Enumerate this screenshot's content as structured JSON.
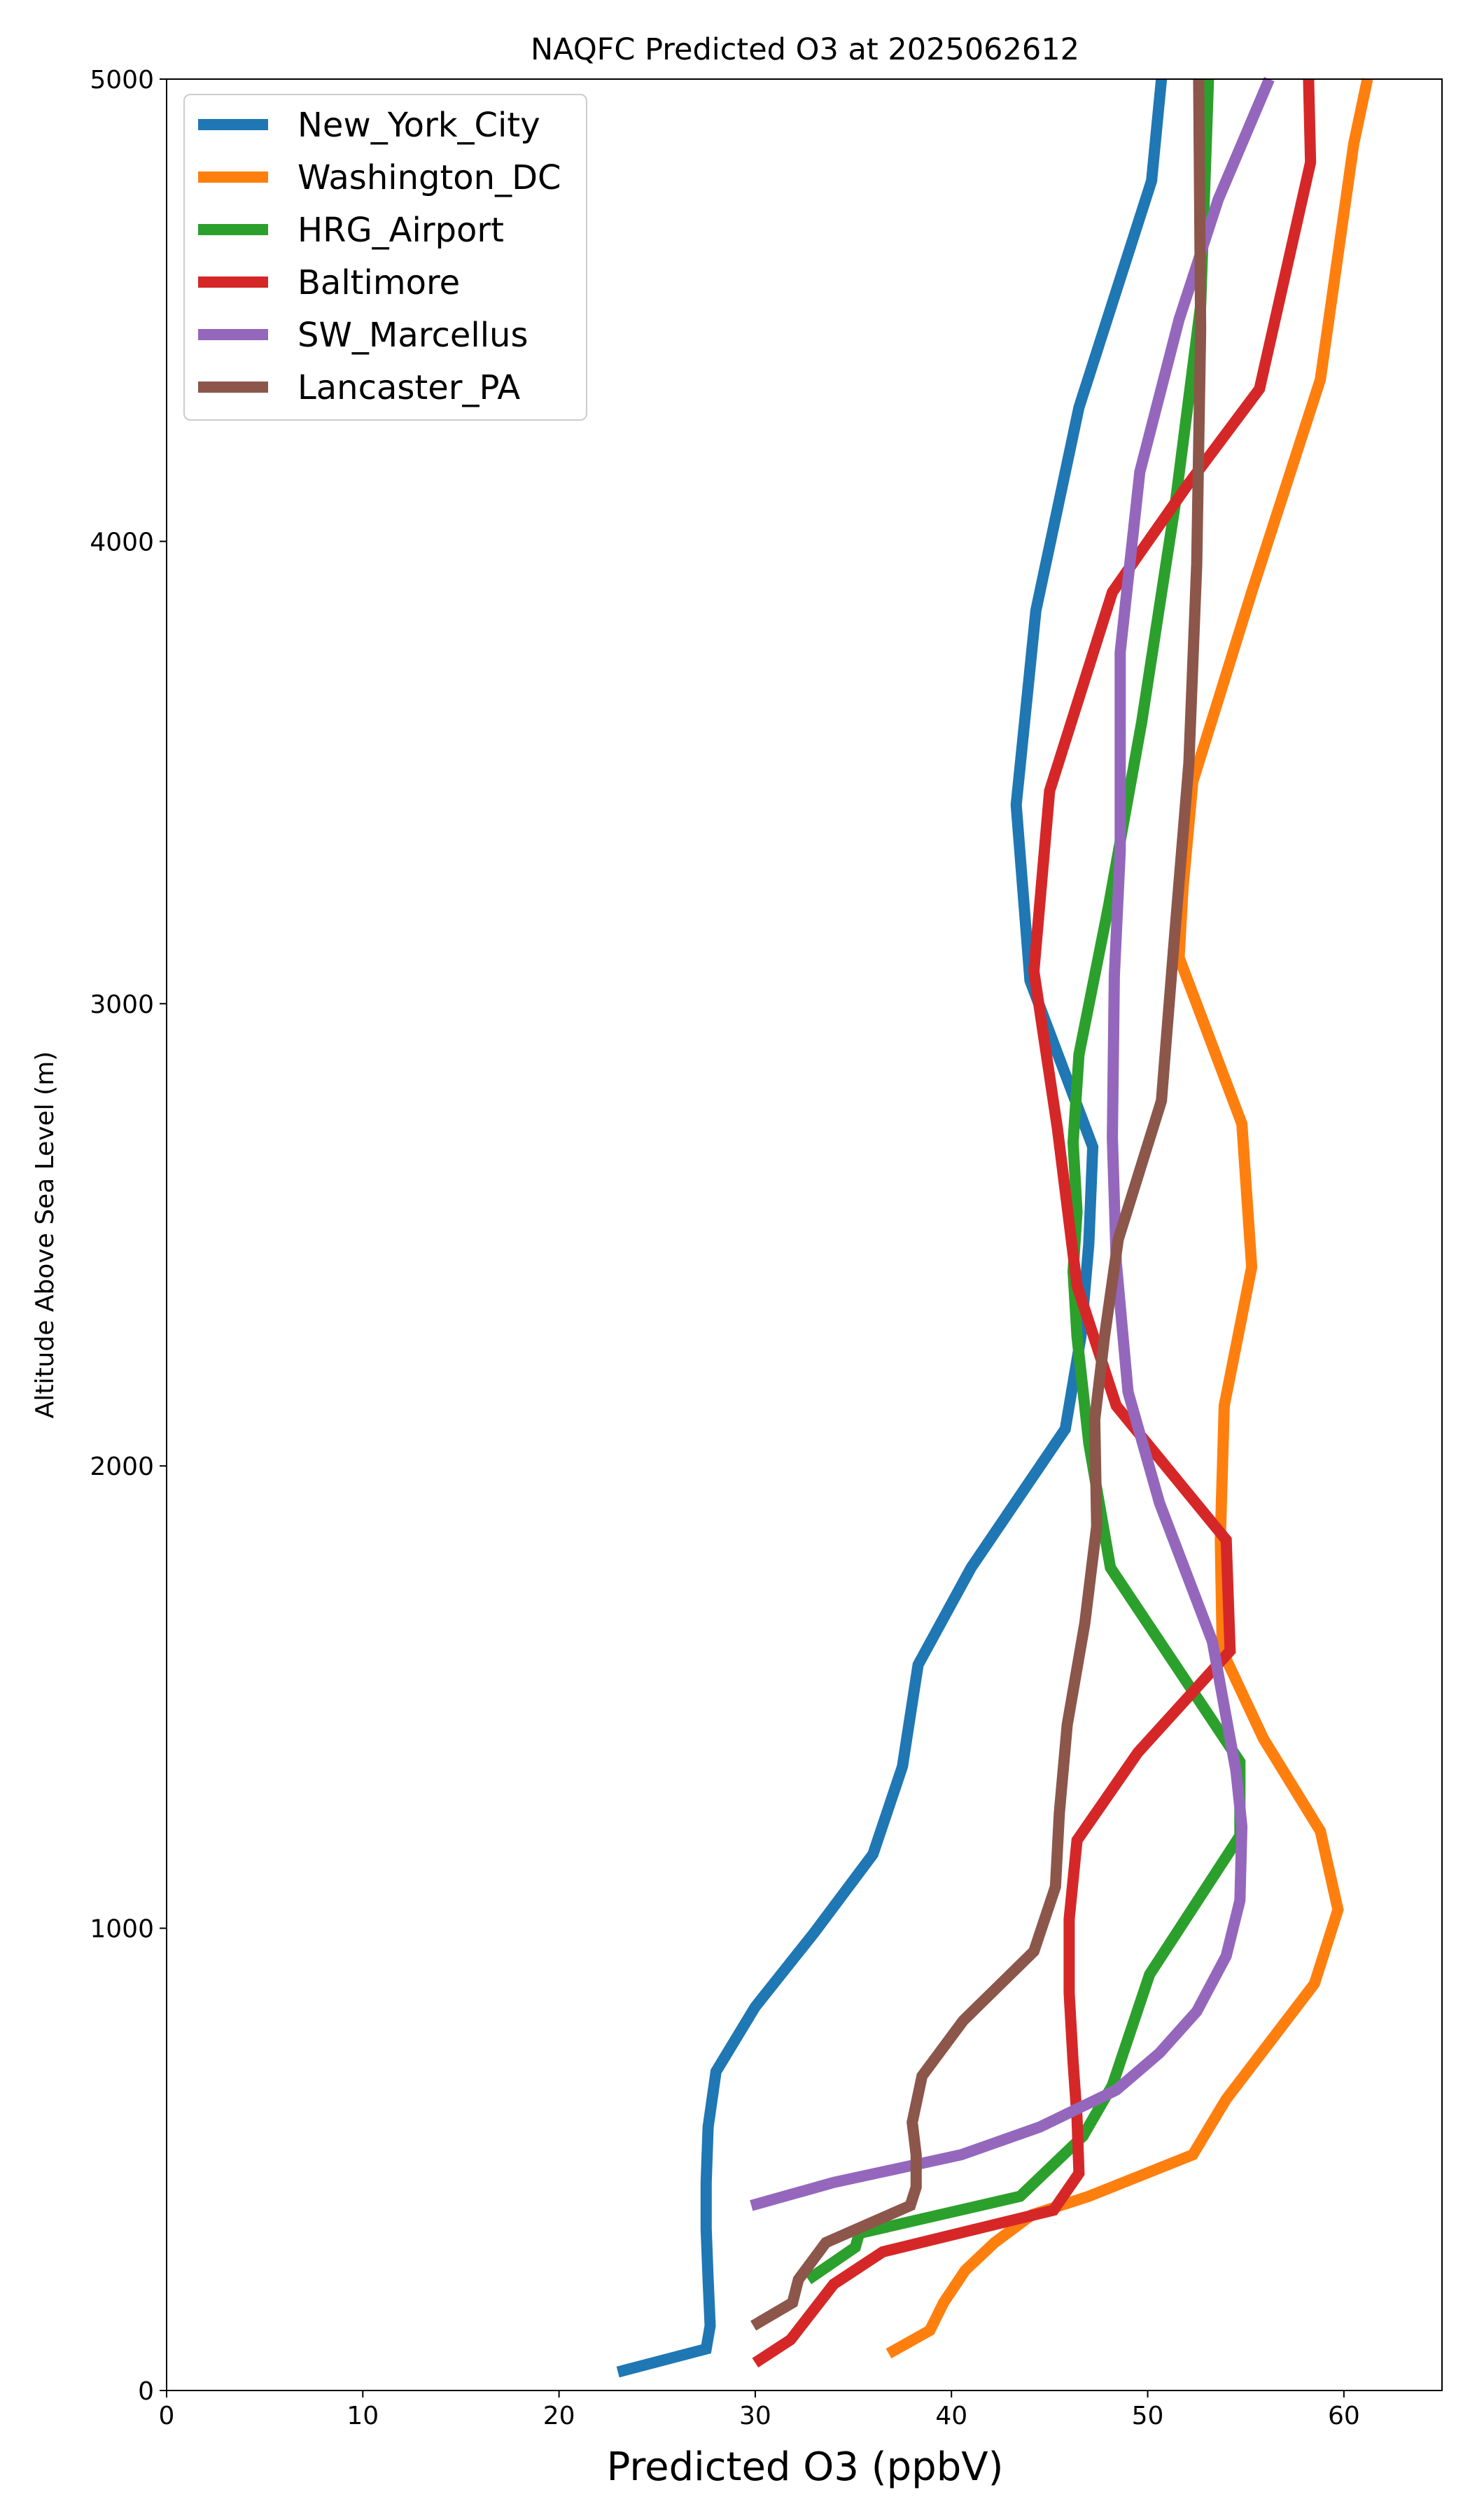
{
  "chart_data": {
    "type": "line",
    "title": "NAQFC Predicted O3 at 2025062612",
    "xlabel": "Predicted O3 (ppbV)",
    "ylabel": "Altitude Above Sea Level (m)",
    "xlim": [
      0,
      65
    ],
    "ylim": [
      0,
      5000
    ],
    "xticks": [
      "0",
      "10",
      "20",
      "30",
      "40",
      "50",
      "60"
    ],
    "yticks": [
      "0",
      "1000",
      "2000",
      "3000",
      "4000",
      "5000"
    ],
    "grid": false,
    "legend_position": "upper-left",
    "series": [
      {
        "name": "New_York_City",
        "color": "#1f77b4",
        "points": [
          [
            23.0,
            40
          ],
          [
            27.5,
            90
          ],
          [
            27.7,
            140
          ],
          [
            27.6,
            240
          ],
          [
            27.5,
            350
          ],
          [
            27.5,
            450
          ],
          [
            27.6,
            570
          ],
          [
            28.0,
            690
          ],
          [
            30.0,
            830
          ],
          [
            33.0,
            990
          ],
          [
            36.0,
            1160
          ],
          [
            37.5,
            1350
          ],
          [
            38.3,
            1570
          ],
          [
            41.0,
            1780
          ],
          [
            45.8,
            2080
          ],
          [
            46.6,
            2280
          ],
          [
            47.0,
            2480
          ],
          [
            47.2,
            2690
          ],
          [
            44.0,
            3050
          ],
          [
            43.3,
            3430
          ],
          [
            44.3,
            3850
          ],
          [
            46.5,
            4290
          ],
          [
            50.2,
            4780
          ],
          [
            50.7,
            5000
          ]
        ]
      },
      {
        "name": "Washington_DC",
        "color": "#ff7f0e",
        "points": [
          [
            36.8,
            80
          ],
          [
            38.9,
            130
          ],
          [
            39.6,
            190
          ],
          [
            40.7,
            260
          ],
          [
            42.2,
            320
          ],
          [
            44.1,
            380
          ],
          [
            47.0,
            420
          ],
          [
            52.3,
            510
          ],
          [
            54.0,
            630
          ],
          [
            58.5,
            880
          ],
          [
            59.7,
            1040
          ],
          [
            58.8,
            1210
          ],
          [
            55.9,
            1410
          ],
          [
            53.8,
            1600
          ],
          [
            53.7,
            1840
          ],
          [
            53.9,
            2130
          ],
          [
            55.3,
            2430
          ],
          [
            54.8,
            2740
          ],
          [
            51.6,
            3100
          ],
          [
            51.8,
            3250
          ],
          [
            52.3,
            3480
          ],
          [
            55.3,
            3890
          ],
          [
            58.8,
            4350
          ],
          [
            60.5,
            4860
          ],
          [
            61.2,
            5000
          ]
        ]
      },
      {
        "name": "HRG_Airport",
        "color": "#2ca02c",
        "points": [
          [
            32.7,
            240
          ],
          [
            35.1,
            310
          ],
          [
            35.3,
            340
          ],
          [
            43.5,
            420
          ],
          [
            46.7,
            550
          ],
          [
            48.2,
            660
          ],
          [
            50.1,
            900
          ],
          [
            54.7,
            1200
          ],
          [
            54.7,
            1360
          ],
          [
            48.1,
            1780
          ],
          [
            47.0,
            2050
          ],
          [
            46.4,
            2280
          ],
          [
            46.2,
            2420
          ],
          [
            46.4,
            2550
          ],
          [
            46.2,
            2700
          ],
          [
            46.5,
            2890
          ],
          [
            48.0,
            3210
          ],
          [
            49.7,
            3610
          ],
          [
            51.4,
            4080
          ],
          [
            52.7,
            4510
          ],
          [
            53.1,
            5000
          ]
        ]
      },
      {
        "name": "Baltimore",
        "color": "#d62728",
        "points": [
          [
            30.0,
            60
          ],
          [
            31.8,
            110
          ],
          [
            34.0,
            230
          ],
          [
            36.5,
            300
          ],
          [
            45.2,
            390
          ],
          [
            46.5,
            470
          ],
          [
            46.4,
            590
          ],
          [
            46.2,
            710
          ],
          [
            46.0,
            860
          ],
          [
            46.0,
            1020
          ],
          [
            46.4,
            1190
          ],
          [
            49.5,
            1380
          ],
          [
            54.2,
            1600
          ],
          [
            54.0,
            1840
          ],
          [
            48.4,
            2130
          ],
          [
            46.4,
            2390
          ],
          [
            45.4,
            2730
          ],
          [
            44.2,
            3070
          ],
          [
            45.0,
            3460
          ],
          [
            48.2,
            3890
          ],
          [
            52.0,
            4120
          ],
          [
            55.7,
            4330
          ],
          [
            58.3,
            4820
          ],
          [
            58.2,
            5000
          ]
        ]
      },
      {
        "name": "SW_Marcellus",
        "color": "#9467bd",
        "points": [
          [
            29.8,
            400
          ],
          [
            34.0,
            450
          ],
          [
            40.5,
            510
          ],
          [
            44.5,
            570
          ],
          [
            48.4,
            650
          ],
          [
            50.6,
            730
          ],
          [
            52.5,
            820
          ],
          [
            54.0,
            940
          ],
          [
            54.7,
            1060
          ],
          [
            54.8,
            1220
          ],
          [
            54.5,
            1340
          ],
          [
            53.3,
            1620
          ],
          [
            50.6,
            1920
          ],
          [
            49.0,
            2160
          ],
          [
            48.4,
            2440
          ],
          [
            48.2,
            2710
          ],
          [
            48.3,
            3060
          ],
          [
            48.6,
            3330
          ],
          [
            48.6,
            3510
          ],
          [
            48.6,
            3760
          ],
          [
            49.6,
            4150
          ],
          [
            51.6,
            4480
          ],
          [
            53.6,
            4740
          ],
          [
            56.2,
            5000
          ]
        ]
      },
      {
        "name": "Lancaster_PA",
        "color": "#8c564b",
        "points": [
          [
            29.9,
            140
          ],
          [
            31.9,
            190
          ],
          [
            32.2,
            240
          ],
          [
            33.6,
            320
          ],
          [
            37.9,
            400
          ],
          [
            38.2,
            440
          ],
          [
            38.2,
            510
          ],
          [
            38.0,
            580
          ],
          [
            38.5,
            680
          ],
          [
            40.6,
            800
          ],
          [
            44.2,
            950
          ],
          [
            45.3,
            1090
          ],
          [
            45.5,
            1250
          ],
          [
            45.9,
            1440
          ],
          [
            46.8,
            1660
          ],
          [
            47.4,
            1870
          ],
          [
            47.3,
            2100
          ],
          [
            47.8,
            2280
          ],
          [
            48.5,
            2490
          ],
          [
            50.7,
            2790
          ],
          [
            51.3,
            3110
          ],
          [
            52.1,
            3520
          ],
          [
            52.5,
            3950
          ],
          [
            52.7,
            4460
          ],
          [
            52.6,
            5000
          ]
        ]
      }
    ]
  }
}
